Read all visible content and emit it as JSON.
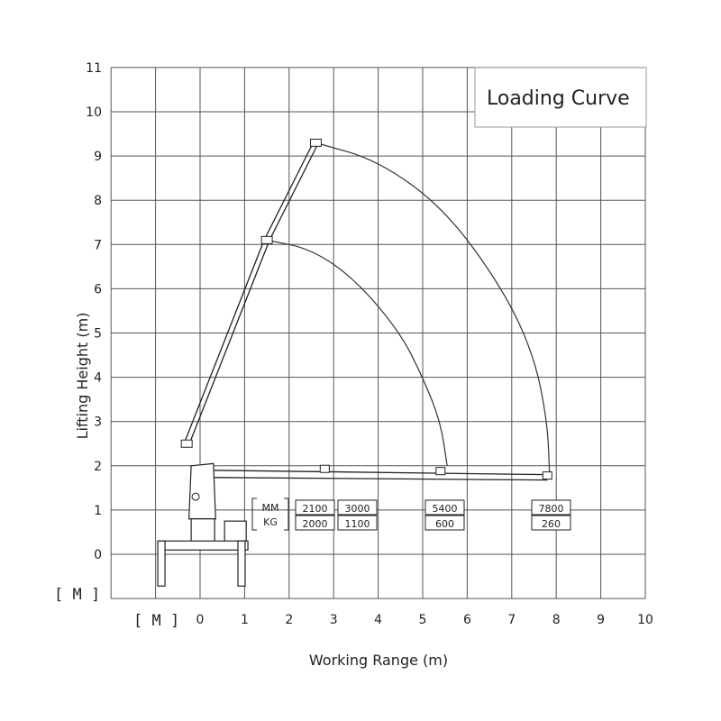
{
  "title": "Loading Curve",
  "x_axis": {
    "label": "Working Range (m)",
    "unit": "[ M ]",
    "ticks": [
      "0",
      "1",
      "2",
      "3",
      "4",
      "5",
      "6",
      "7",
      "8",
      "9",
      "10"
    ],
    "range": [
      -2,
      10
    ]
  },
  "y_axis": {
    "label": "Lifting Height (m)",
    "unit": "[ M ]",
    "ticks": [
      "0",
      "1",
      "2",
      "3",
      "4",
      "5",
      "6",
      "7",
      "8",
      "9",
      "10",
      "11"
    ],
    "range": [
      -1,
      11
    ]
  },
  "load_table": {
    "row_labels": [
      "MM",
      "KG"
    ],
    "columns": [
      {
        "mm": "2100",
        "kg": "2000"
      },
      {
        "mm": "3000",
        "kg": "1100"
      },
      {
        "mm": "5400",
        "kg": "600"
      },
      {
        "mm": "7800",
        "kg": "260"
      }
    ]
  },
  "chart_data": {
    "type": "line",
    "title": "Loading Curve",
    "xlabel": "Working Range (m)",
    "ylabel": "Lifting Height (m)",
    "xlim": [
      -2,
      10
    ],
    "ylim": [
      -1,
      11
    ],
    "series": [
      {
        "x": [
          1.5,
          2.5,
          3.5,
          4.5,
          5.0,
          5.4,
          5.55
        ],
        "y": [
          7.1,
          6.9,
          6.2,
          5.0,
          4.0,
          3.0,
          2.0
        ]
      },
      {
        "x": [
          2.6,
          4.0,
          5.5,
          6.8,
          7.5,
          7.8,
          7.85
        ],
        "y": [
          9.3,
          8.9,
          7.8,
          6.0,
          4.5,
          3.0,
          1.8
        ]
      }
    ],
    "boom": {
      "vertical": [
        [
          -0.3,
          2.5
        ],
        [
          1.5,
          7.1
        ],
        [
          2.6,
          9.3
        ]
      ],
      "horizontal": [
        [
          0.1,
          1.9
        ],
        [
          2.8,
          1.95
        ],
        [
          5.4,
          1.9
        ],
        [
          7.8,
          1.8
        ]
      ]
    }
  }
}
